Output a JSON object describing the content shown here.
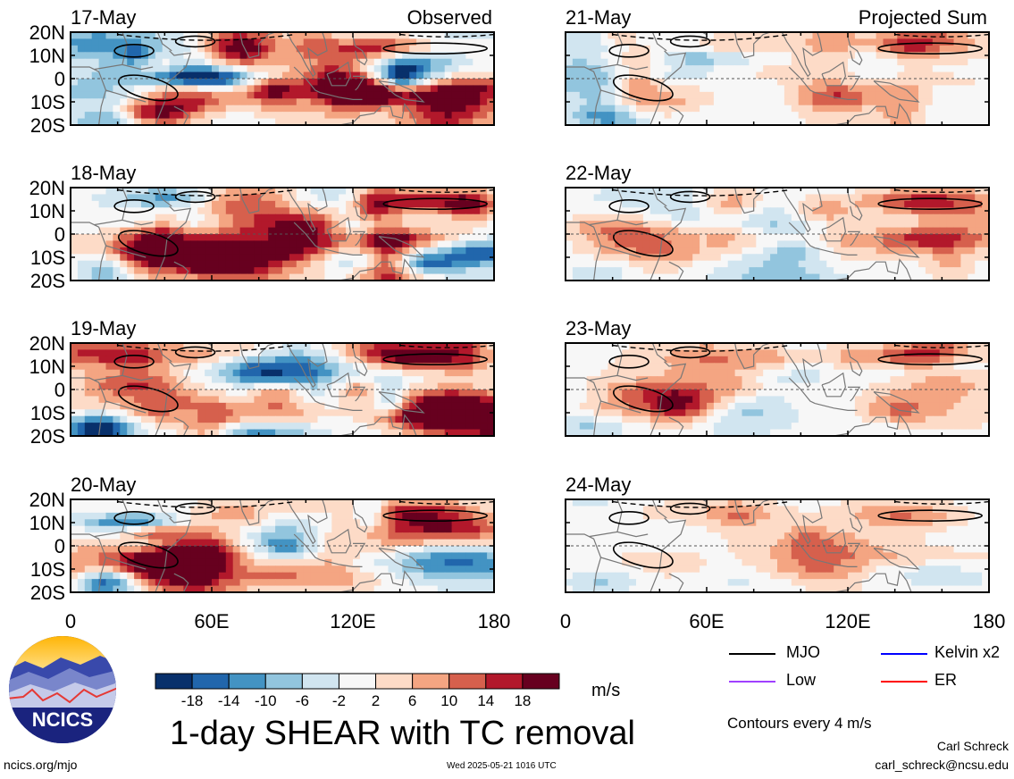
{
  "chart_data": {
    "type": "heatmap",
    "title": "1-day SHEAR with TC removal",
    "units": "m/s",
    "column_labels": [
      "Observed",
      "Projected Sum"
    ],
    "panels": [
      {
        "date": "17-May",
        "column": "Observed"
      },
      {
        "date": "18-May",
        "column": "Observed"
      },
      {
        "date": "19-May",
        "column": "Observed"
      },
      {
        "date": "20-May",
        "column": "Observed"
      },
      {
        "date": "21-May",
        "column": "Projected Sum"
      },
      {
        "date": "22-May",
        "column": "Projected Sum"
      },
      {
        "date": "23-May",
        "column": "Projected Sum"
      },
      {
        "date": "24-May",
        "column": "Projected Sum"
      }
    ],
    "x_ticks": [
      "0",
      "60E",
      "120E",
      "180"
    ],
    "x_values": [
      0,
      60,
      120,
      180
    ],
    "y_ticks": [
      "20N",
      "10N",
      "0",
      "10S",
      "20S"
    ],
    "y_values": [
      20,
      10,
      0,
      -10,
      -20
    ],
    "xlim": [
      0,
      180
    ],
    "ylim": [
      -20,
      20
    ],
    "colorbar": {
      "labels": [
        "-18",
        "-14",
        "-10",
        "-6",
        "-2",
        "2",
        "6",
        "10",
        "14",
        "18"
      ],
      "bounds": [
        -18,
        -14,
        -10,
        -6,
        -2,
        2,
        6,
        10,
        14,
        18
      ],
      "colors": [
        "#08306b",
        "#2166ac",
        "#4393c3",
        "#92c5de",
        "#d1e5f0",
        "#f7f7f7",
        "#fddbc7",
        "#f4a582",
        "#d6604d",
        "#b2182b",
        "#67001f"
      ]
    },
    "contour_legend": [
      {
        "label": "MJO",
        "color": "#000000"
      },
      {
        "label": "Kelvin x2",
        "color": "#0000ff"
      },
      {
        "label": "Low",
        "color": "#a040ff"
      },
      {
        "label": "ER",
        "color": "#ff0000"
      }
    ],
    "contour_note": "Contours every 4 m/s"
  },
  "footer": {
    "logo_text": "NCICS",
    "url": "ncics.org/mjo",
    "timestamp": "Wed 2025-05-21 1016 UTC",
    "author": "Carl Schreck",
    "email": "carl_schreck@ncsu.edu"
  }
}
